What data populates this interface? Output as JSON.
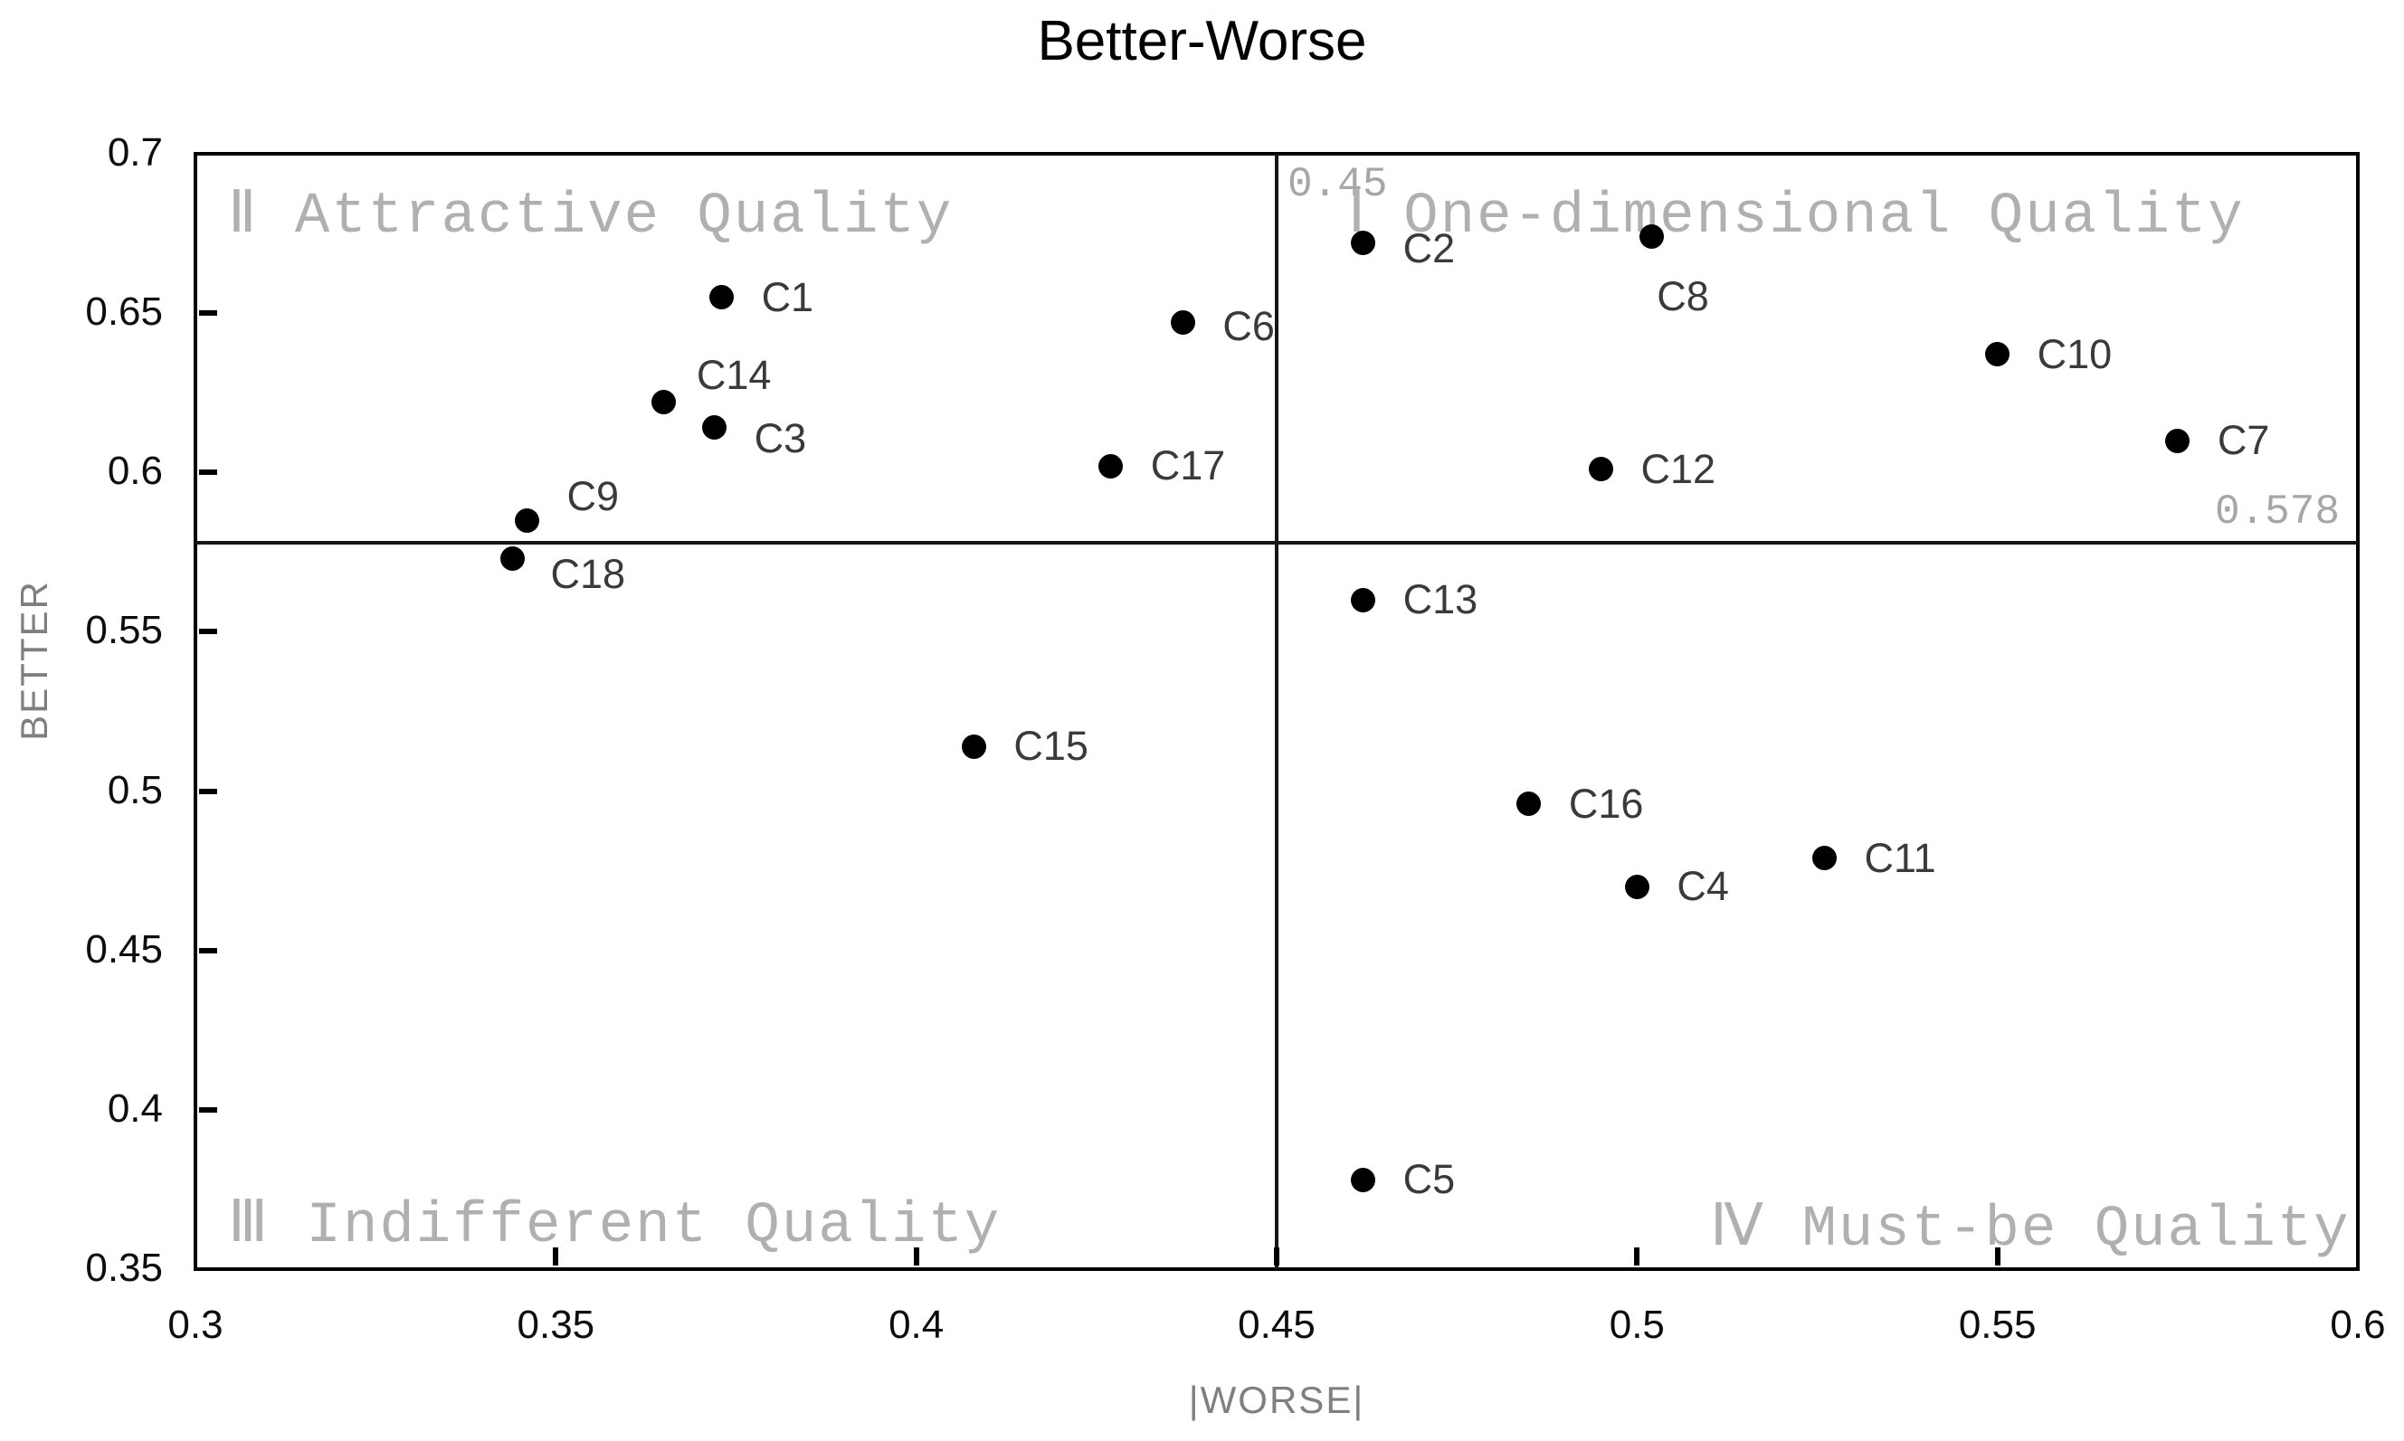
{
  "chart_data": {
    "type": "scatter",
    "title": "Better-Worse",
    "xlabel": "|WORSE|",
    "ylabel": "BETTER",
    "xlim": [
      0.3,
      0.6
    ],
    "ylim": [
      0.35,
      0.7
    ],
    "x_tick_labels": [
      "0.3",
      "0.35",
      "0.4",
      "0.45",
      "0.5",
      "0.55",
      "0.6"
    ],
    "y_tick_labels": [
      "0.35",
      "0.4",
      "0.45",
      "0.5",
      "0.55",
      "0.6",
      "0.65",
      "0.7"
    ],
    "grid": false,
    "legend": "none",
    "reference_lines": {
      "vertical": {
        "x": 0.45,
        "label": "0.45"
      },
      "horizontal": {
        "y": 0.578,
        "label": "0.578"
      }
    },
    "quadrants": [
      {
        "id": "I",
        "label": "Ⅰ One-dimensional Quality",
        "position": "top-right"
      },
      {
        "id": "II",
        "label": "Ⅱ Attractive Quality",
        "position": "top-left"
      },
      {
        "id": "III",
        "label": "Ⅲ Indifferent Quality",
        "position": "bottom-left"
      },
      {
        "id": "IV",
        "label": "Ⅳ Must-be Quality",
        "position": "bottom-right"
      }
    ],
    "series": [
      {
        "name": "criteria",
        "points": [
          {
            "label": "C1",
            "x": 0.373,
            "y": 0.655
          },
          {
            "label": "C2",
            "x": 0.462,
            "y": 0.672,
            "dy": 6
          },
          {
            "label": "C3",
            "x": 0.372,
            "y": 0.614,
            "dy": 12
          },
          {
            "label": "C4",
            "x": 0.5,
            "y": 0.47
          },
          {
            "label": "C5",
            "x": 0.462,
            "y": 0.378
          },
          {
            "label": "C6",
            "x": 0.437,
            "y": 0.647,
            "dy": 4
          },
          {
            "label": "C7",
            "x": 0.575,
            "y": 0.61
          },
          {
            "label": "C8",
            "x": 0.502,
            "y": 0.674,
            "dx": 6,
            "dy": 66
          },
          {
            "label": "C9",
            "x": 0.346,
            "y": 0.585,
            "dx": 44,
            "dy": -26
          },
          {
            "label": "C10",
            "x": 0.55,
            "y": 0.637
          },
          {
            "label": "C11",
            "x": 0.526,
            "y": 0.479
          },
          {
            "label": "C12",
            "x": 0.495,
            "y": 0.601
          },
          {
            "label": "C13",
            "x": 0.462,
            "y": 0.56
          },
          {
            "label": "C14",
            "x": 0.365,
            "y": 0.622,
            "dx": 36,
            "dy": -30
          },
          {
            "label": "C15",
            "x": 0.408,
            "y": 0.514
          },
          {
            "label": "C16",
            "x": 0.485,
            "y": 0.496
          },
          {
            "label": "C17",
            "x": 0.427,
            "y": 0.602
          },
          {
            "label": "C18",
            "x": 0.344,
            "y": 0.573,
            "dx": 42,
            "dy": 18
          }
        ]
      }
    ],
    "colors": {
      "point": "#000000",
      "point_label": "#3a3a3a",
      "axis": "#000000",
      "tick_label": "#0d0d0d",
      "quadrant_label": "#b0b0b0",
      "reference_label": "#a6a6a6",
      "axis_title": "#7f7f7f",
      "background": "#ffffff"
    }
  }
}
